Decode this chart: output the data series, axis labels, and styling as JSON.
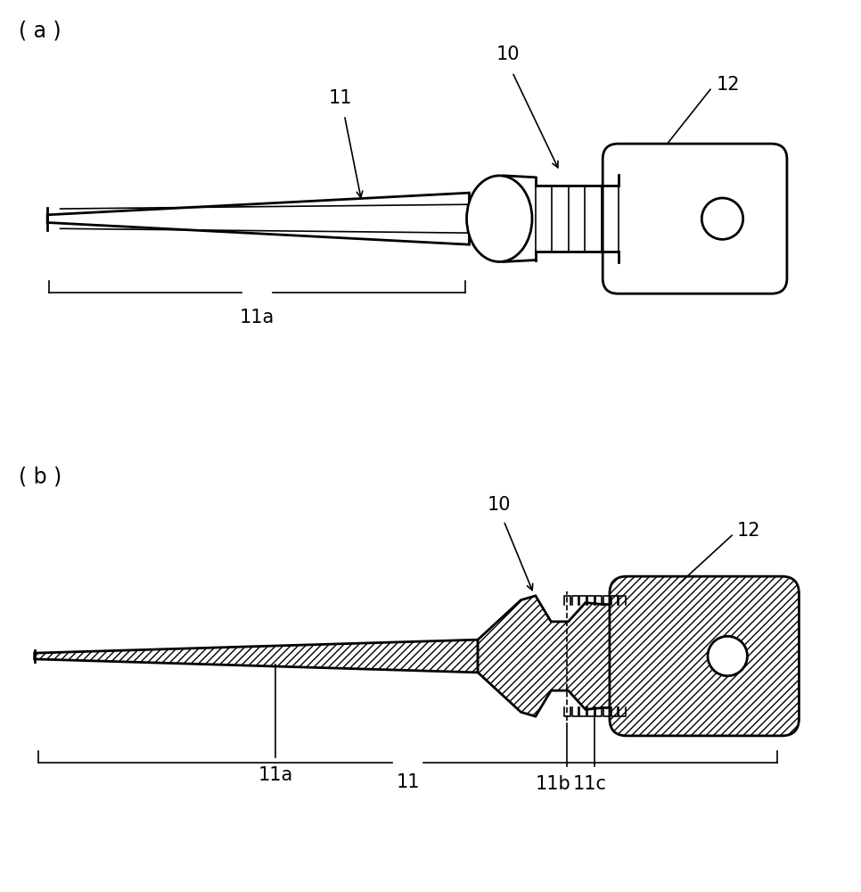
{
  "bg_color": "#ffffff",
  "line_color": "#000000",
  "label_a": "( a )",
  "label_b": "( b )",
  "ref_10": "10",
  "ref_11": "11",
  "ref_11a": "11a",
  "ref_12": "12",
  "ref_11b": "11b",
  "ref_11c": "11c",
  "font_size_label": 17,
  "font_size_ref": 15,
  "lw_main": 2.0,
  "lw_thin": 1.2
}
